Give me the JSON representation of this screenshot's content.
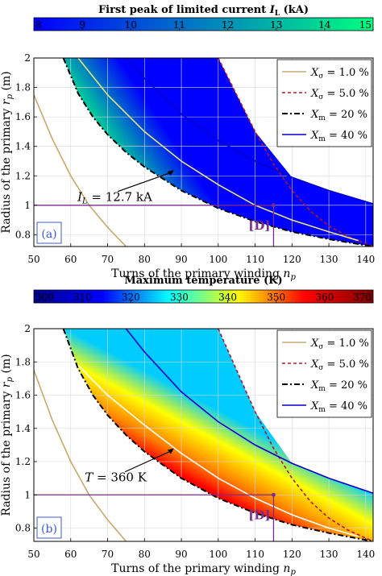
{
  "chart_data": [
    {
      "type": "heatmap",
      "panel_label": "(a)",
      "colorbar": {
        "title": "First peak of limited current I_L (kA)",
        "title_main": "First peak of limited current ",
        "title_var": "I",
        "title_sub": "L",
        "title_unit": " (kA)",
        "min": 8,
        "max": 15,
        "ticks": [
          "8",
          "9",
          "10",
          "11",
          "12",
          "13",
          "14",
          "15"
        ],
        "colormap": "winter",
        "colors": [
          "#0000ff",
          "#00ff80"
        ]
      },
      "xlabel": "Turns of the primary winding n_p",
      "xlabel_main": "Turns of the primary winding ",
      "xlabel_var": "n",
      "xlabel_sub": "p",
      "ylabel": "Radius of the primary r_p (m)",
      "ylabel_main": "Radius of the primary ",
      "ylabel_var": "r",
      "ylabel_sub": "p",
      "ylabel_unit": " (m)",
      "xlim": [
        50,
        142
      ],
      "ylim": [
        0.72,
        2.0
      ],
      "xticks": [
        "50",
        "60",
        "70",
        "80",
        "90",
        "100",
        "110",
        "120",
        "130",
        "140"
      ],
      "yticks": [
        "0.8",
        "1",
        "1.2",
        "1.4",
        "1.6",
        "1.8",
        "2"
      ],
      "grid": true,
      "legend_position": "top-right",
      "series": [
        {
          "name": "X_σ = 1.0 %",
          "label_var": "X",
          "label_sub": "σ",
          "label_rest": " = 1.0 %",
          "color": "#c8a86b",
          "style": "solid",
          "x": [
            50,
            55,
            60,
            65,
            70,
            75
          ],
          "y": [
            1.75,
            1.45,
            1.2,
            1.0,
            0.85,
            0.72
          ]
        },
        {
          "name": "X_σ = 5.0 %",
          "label_var": "X",
          "label_sub": "σ",
          "label_rest": " = 5.0 %",
          "color": "#b2182b",
          "style": "dashed",
          "x": [
            100,
            105,
            110,
            115,
            120,
            125,
            130,
            135,
            140,
            142
          ],
          "y": [
            2.0,
            1.75,
            1.5,
            1.28,
            1.1,
            0.96,
            0.86,
            0.79,
            0.74,
            0.72
          ]
        },
        {
          "name": "X_m = 20 %",
          "label_var": "X",
          "label_sub": "m",
          "label_rest": " = 20 %",
          "color": "#000000",
          "style": "dashdot",
          "x": [
            58,
            62,
            66,
            70,
            75,
            80,
            90,
            100,
            110,
            120,
            130,
            142
          ],
          "y": [
            2.0,
            1.76,
            1.6,
            1.48,
            1.36,
            1.26,
            1.1,
            0.98,
            0.89,
            0.82,
            0.77,
            0.72
          ]
        },
        {
          "name": "X_m = 40 %",
          "label_var": "X",
          "label_sub": "m",
          "label_rest": " = 40 %",
          "color": "#0000cc",
          "style": "solid",
          "x": [
            75,
            80,
            90,
            100,
            110,
            120,
            130,
            142
          ],
          "y": [
            2.0,
            1.86,
            1.62,
            1.44,
            1.3,
            1.19,
            1.1,
            1.01
          ]
        }
      ],
      "contour": {
        "label": "I_L = 12.7 kA",
        "label_var": "I",
        "label_sub": "L",
        "label_rest": " = 12.7 kA",
        "color": "#e8e27a",
        "x": [
          62,
          70,
          80,
          90,
          100,
          110,
          120,
          130,
          138
        ],
        "y": [
          2.0,
          1.75,
          1.5,
          1.3,
          1.14,
          1.0,
          0.9,
          0.82,
          0.76
        ]
      },
      "design_point": {
        "label": "[D]",
        "x": 115,
        "y": 1.0,
        "color": "#7b2d8e"
      }
    },
    {
      "type": "heatmap",
      "panel_label": "(b)",
      "colorbar": {
        "title": "Maximum temperature (K)",
        "min": 300,
        "max": 370,
        "ticks": [
          "300",
          "310",
          "320",
          "330",
          "340",
          "350",
          "360",
          "370"
        ],
        "colormap": "jet",
        "colors": [
          "#00008f",
          "#0000ff",
          "#00ffff",
          "#ffff00",
          "#ff0000",
          "#800000"
        ]
      },
      "xlabel": "Turns of the primary winding n_p",
      "xlabel_main": "Turns of the primary winding ",
      "xlabel_var": "n",
      "xlabel_sub": "p",
      "ylabel": "Radius of the primary r_p (m)",
      "ylabel_main": "Radius of the primary ",
      "ylabel_var": "r",
      "ylabel_sub": "p",
      "ylabel_unit": " (m)",
      "xlim": [
        50,
        142
      ],
      "ylim": [
        0.72,
        2.0
      ],
      "xticks": [
        "50",
        "60",
        "70",
        "80",
        "90",
        "100",
        "110",
        "120",
        "130",
        "140"
      ],
      "yticks": [
        "0.8",
        "1",
        "1.2",
        "1.4",
        "1.6",
        "1.8",
        "2"
      ],
      "grid": true,
      "legend_position": "top-right",
      "series": [
        {
          "name": "X_σ = 1.0 %",
          "label_var": "X",
          "label_sub": "σ",
          "label_rest": " = 1.0 %",
          "color": "#c8a86b",
          "style": "solid",
          "x": [
            50,
            55,
            60,
            65,
            70,
            75
          ],
          "y": [
            1.75,
            1.45,
            1.2,
            1.0,
            0.85,
            0.72
          ]
        },
        {
          "name": "X_σ = 5.0 %",
          "label_var": "X",
          "label_sub": "σ",
          "label_rest": " = 5.0 %",
          "color": "#b2182b",
          "style": "dashed",
          "x": [
            100,
            105,
            110,
            115,
            120,
            125,
            130,
            135,
            140,
            142
          ],
          "y": [
            2.0,
            1.75,
            1.5,
            1.28,
            1.1,
            0.96,
            0.86,
            0.79,
            0.74,
            0.72
          ]
        },
        {
          "name": "X_m = 20 %",
          "label_var": "X",
          "label_sub": "m",
          "label_rest": " = 20 %",
          "color": "#000000",
          "style": "dashdot",
          "x": [
            58,
            62,
            66,
            70,
            75,
            80,
            90,
            100,
            110,
            120,
            130,
            142
          ],
          "y": [
            2.0,
            1.76,
            1.6,
            1.48,
            1.36,
            1.26,
            1.1,
            0.98,
            0.89,
            0.82,
            0.77,
            0.72
          ]
        },
        {
          "name": "X_m = 40 %",
          "label_var": "X",
          "label_sub": "m",
          "label_rest": " = 40 %",
          "color": "#0000cc",
          "style": "solid",
          "x": [
            75,
            80,
            90,
            100,
            110,
            120,
            130,
            142
          ],
          "y": [
            2.0,
            1.86,
            1.62,
            1.44,
            1.3,
            1.19,
            1.1,
            1.01
          ]
        }
      ],
      "contour": {
        "label": "T = 360 K",
        "label_var": "T",
        "label_sub": "",
        "label_rest": " = 360 K",
        "color": "#ffffff",
        "x": [
          62,
          70,
          80,
          90,
          100,
          110,
          120,
          130,
          138
        ],
        "y": [
          1.78,
          1.6,
          1.42,
          1.25,
          1.1,
          0.98,
          0.88,
          0.8,
          0.75
        ]
      },
      "design_point": {
        "label": "[D]",
        "x": 115,
        "y": 1.0,
        "color": "#7b2d8e"
      }
    }
  ]
}
